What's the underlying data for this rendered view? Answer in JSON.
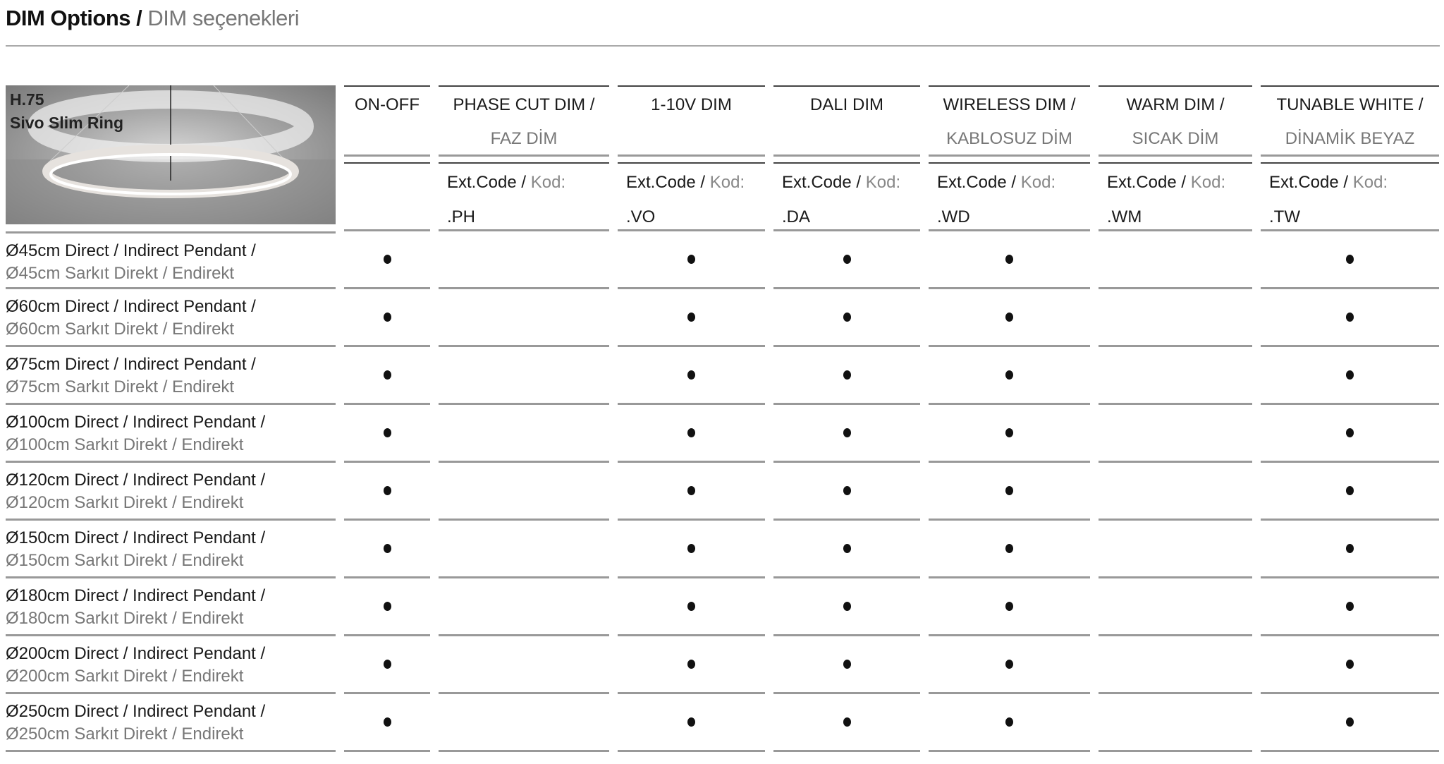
{
  "title": {
    "bold": "DIM Options /",
    "light": "DIM seçenekleri"
  },
  "product": {
    "code": "H.75",
    "name": "Sivo Slim Ring"
  },
  "columns": [
    {
      "line1": "ON-OFF",
      "line2": "",
      "ext_label": "",
      "kod_label": "",
      "code": ""
    },
    {
      "line1": "PHASE CUT DIM /",
      "line2": "FAZ DİM",
      "ext_label": "Ext.Code /",
      "kod_label": "Kod:",
      "code": ".PH"
    },
    {
      "line1": "1-10V DIM",
      "line2": "",
      "ext_label": "Ext.Code /",
      "kod_label": "Kod:",
      "code": ".VO"
    },
    {
      "line1": "DALI DIM",
      "line2": "",
      "ext_label": "Ext.Code /",
      "kod_label": "Kod:",
      "code": ".DA"
    },
    {
      "line1": "WIRELESS DIM /",
      "line2": "KABLOSUZ DİM",
      "ext_label": "Ext.Code /",
      "kod_label": "Kod:",
      "code": ".WD"
    },
    {
      "line1": "WARM DIM /",
      "line2": "SICAK DİM",
      "ext_label": "Ext.Code /",
      "kod_label": "Kod:",
      "code": ".WM"
    },
    {
      "line1": "TUNABLE WHITE /",
      "line2": "DİNAMİK BEYAZ",
      "ext_label": "Ext.Code /",
      "kod_label": "Kod:",
      "code": ".TW"
    }
  ],
  "rows": [
    {
      "en": "Ø45cm Direct / Indirect Pendant /",
      "tr": "Ø45cm Sarkıt Direkt / Endirekt",
      "available": [
        true,
        false,
        true,
        true,
        true,
        false,
        true
      ]
    },
    {
      "en": "Ø60cm Direct / Indirect Pendant /",
      "tr": "Ø60cm Sarkıt Direkt / Endirekt",
      "available": [
        true,
        false,
        true,
        true,
        true,
        false,
        true
      ]
    },
    {
      "en": "Ø75cm Direct / Indirect Pendant /",
      "tr": "Ø75cm Sarkıt Direkt / Endirekt",
      "available": [
        true,
        false,
        true,
        true,
        true,
        false,
        true
      ]
    },
    {
      "en": "Ø100cm Direct / Indirect Pendant /",
      "tr": "Ø100cm Sarkıt Direkt / Endirekt",
      "available": [
        true,
        false,
        true,
        true,
        true,
        false,
        true
      ]
    },
    {
      "en": "Ø120cm Direct / Indirect Pendant /",
      "tr": "Ø120cm Sarkıt Direkt / Endirekt",
      "available": [
        true,
        false,
        true,
        true,
        true,
        false,
        true
      ]
    },
    {
      "en": "Ø150cm Direct / Indirect Pendant /",
      "tr": "Ø150cm Sarkıt Direkt / Endirekt",
      "available": [
        true,
        false,
        true,
        true,
        true,
        false,
        true
      ]
    },
    {
      "en": "Ø180cm Direct / Indirect Pendant /",
      "tr": "Ø180cm Sarkıt Direkt / Endirekt",
      "available": [
        true,
        false,
        true,
        true,
        true,
        false,
        true
      ]
    },
    {
      "en": "Ø200cm Direct / Indirect Pendant /",
      "tr": "Ø200cm Sarkıt Direkt / Endirekt",
      "available": [
        true,
        false,
        true,
        true,
        true,
        false,
        true
      ]
    },
    {
      "en": "Ø250cm Direct / Indirect Pendant /",
      "tr": "Ø250cm Sarkıt Direkt / Endirekt",
      "available": [
        true,
        false,
        true,
        true,
        true,
        false,
        true
      ]
    }
  ],
  "colors": {
    "dot": "#111111",
    "rule": "#999999",
    "secondary_text": "#777777"
  }
}
